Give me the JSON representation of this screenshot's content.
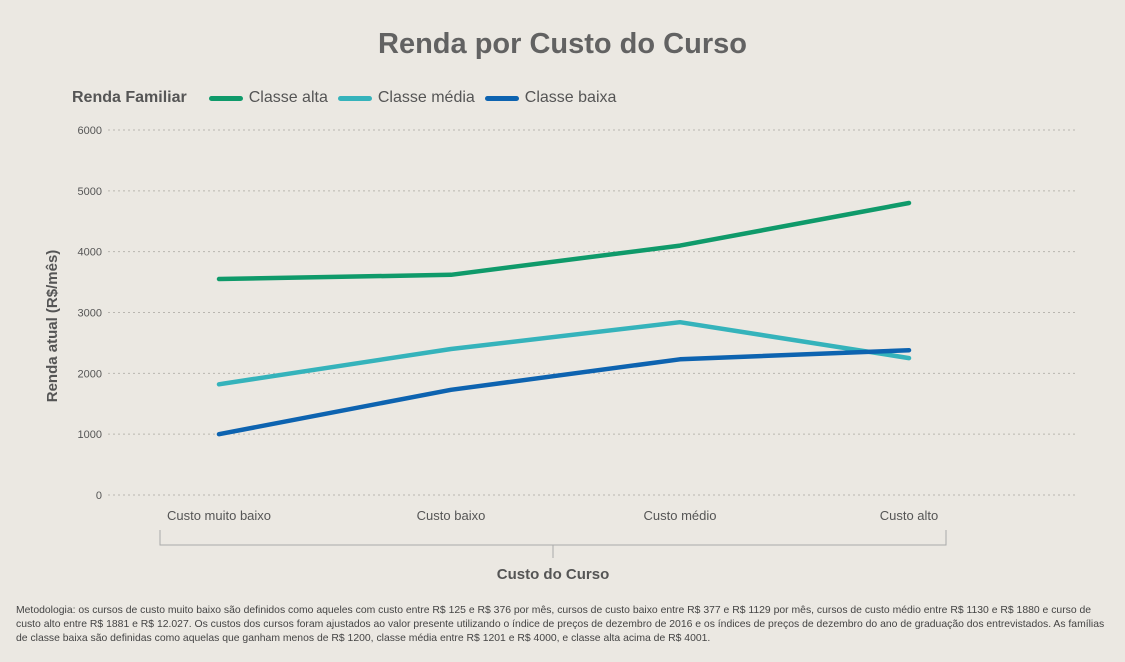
{
  "title": "Renda por Custo do Curso",
  "legend_title": "Renda Familiar",
  "footnote": "Metodologia: os cursos de custo muito baixo são definidos como aqueles com custo entre R$ 125 e R$ 376 por mês, cursos de custo baixo entre R$ 377 e R$ 1129 por mês, cursos de custo médio entre R$ 1130 e R$ 1880 e curso de custo alto entre R$ 1881 e R$ 12.027. Os custos dos cursos foram ajustados ao valor presente utilizando o índice de preços de dezembro de 2016 e os índices de preços de dezembro do ano de graduação dos entrevistados. As famílias de classe baixa são definidas como aquelas que ganham menos de R$ 1200, classe média entre R$ 1201 e R$ 4000, e classe alta acima de R$ 4001.",
  "chart_data": {
    "type": "line",
    "title": "Renda por Custo do Curso",
    "xlabel": "Custo do Curso",
    "ylabel": "Renda atual (R$/mês)",
    "categories": [
      "Custo muito baixo",
      "Custo baixo",
      "Custo médio",
      "Custo alto"
    ],
    "ylim": [
      0,
      6000
    ],
    "yticks": [
      0,
      1000,
      2000,
      3000,
      4000,
      5000,
      6000
    ],
    "grid": true,
    "legend_position": "top-left",
    "series": [
      {
        "name": "Classe alta",
        "color": "#0f9a6a",
        "values": [
          3550,
          3620,
          4100,
          4800
        ]
      },
      {
        "name": "Classe média",
        "color": "#35b3bb",
        "values": [
          1820,
          2400,
          2840,
          2250
        ]
      },
      {
        "name": "Classe baixa",
        "color": "#0d63b0",
        "values": [
          1000,
          1730,
          2230,
          2380
        ]
      }
    ]
  }
}
